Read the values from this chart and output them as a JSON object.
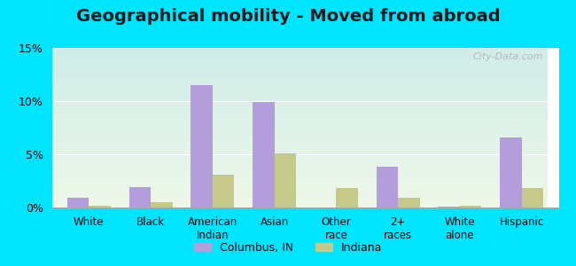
{
  "title": "Geographical mobility - Moved from abroad",
  "categories": [
    "White",
    "Black",
    "American\nIndian",
    "Asian",
    "Other\nrace",
    "2+\nraces",
    "White\nalone",
    "Hispanic"
  ],
  "columbus_values": [
    0.9,
    1.9,
    11.5,
    9.9,
    0.0,
    3.8,
    0.1,
    6.6
  ],
  "indiana_values": [
    0.2,
    0.5,
    3.1,
    5.1,
    1.8,
    0.9,
    0.2,
    1.8
  ],
  "columbus_color": "#b39ddb",
  "indiana_color": "#c5c98a",
  "ylim": [
    0,
    15
  ],
  "yticks": [
    0,
    5,
    10,
    15
  ],
  "ytick_labels": [
    "0%",
    "5%",
    "10%",
    "15%"
  ],
  "background_top": "#d0ede8",
  "background_bottom": "#eef7e8",
  "outer_bg": "#00e5ff",
  "title_fontsize": 14,
  "legend_labels": [
    "Columbus, IN",
    "Indiana"
  ],
  "watermark": "City-Data.com"
}
